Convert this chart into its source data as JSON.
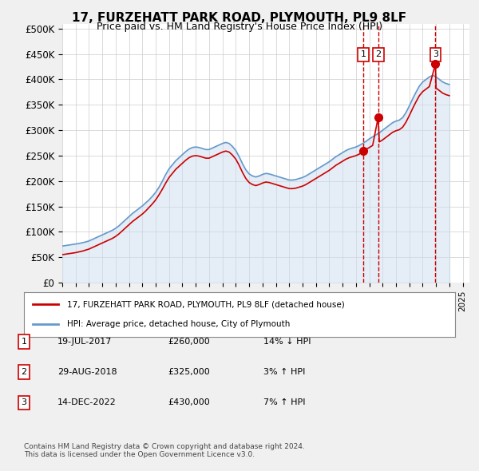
{
  "title": "17, FURZEHATT PARK ROAD, PLYMOUTH, PL9 8LF",
  "subtitle": "Price paid vs. HM Land Registry's House Price Index (HPI)",
  "ylabel_ticks": [
    "£0",
    "£50K",
    "£100K",
    "£150K",
    "£200K",
    "£250K",
    "£300K",
    "£350K",
    "£400K",
    "£450K",
    "£500K"
  ],
  "ytick_values": [
    0,
    50000,
    100000,
    150000,
    200000,
    250000,
    300000,
    350000,
    400000,
    450000,
    500000
  ],
  "ylim": [
    0,
    510000
  ],
  "xlim_start": 1995.0,
  "xlim_end": 2025.5,
  "hpi_color": "#6699cc",
  "price_color": "#cc0000",
  "dashed_color": "#cc0000",
  "shaded_color": "#ccddee",
  "background_color": "#f0f0f0",
  "plot_bg_color": "#ffffff",
  "sale_dates": [
    2017.54,
    2018.66,
    2022.95
  ],
  "sale_prices": [
    260000,
    325000,
    430000
  ],
  "sale_labels": [
    "1",
    "2",
    "3"
  ],
  "legend_entries": [
    "17, FURZEHATT PARK ROAD, PLYMOUTH, PL9 8LF (detached house)",
    "HPI: Average price, detached house, City of Plymouth"
  ],
  "table_data": [
    [
      "1",
      "19-JUL-2017",
      "£260,000",
      "14% ↓ HPI"
    ],
    [
      "2",
      "29-AUG-2018",
      "£325,000",
      "3% ↑ HPI"
    ],
    [
      "3",
      "14-DEC-2022",
      "£430,000",
      "7% ↑ HPI"
    ]
  ],
  "footer": "Contains HM Land Registry data © Crown copyright and database right 2024.\nThis data is licensed under the Open Government Licence v3.0.",
  "hpi_data_x": [
    1995.0,
    1995.25,
    1995.5,
    1995.75,
    1996.0,
    1996.25,
    1996.5,
    1996.75,
    1997.0,
    1997.25,
    1997.5,
    1997.75,
    1998.0,
    1998.25,
    1998.5,
    1998.75,
    1999.0,
    1999.25,
    1999.5,
    1999.75,
    2000.0,
    2000.25,
    2000.5,
    2000.75,
    2001.0,
    2001.25,
    2001.5,
    2001.75,
    2002.0,
    2002.25,
    2002.5,
    2002.75,
    2003.0,
    2003.25,
    2003.5,
    2003.75,
    2004.0,
    2004.25,
    2004.5,
    2004.75,
    2005.0,
    2005.25,
    2005.5,
    2005.75,
    2006.0,
    2006.25,
    2006.5,
    2006.75,
    2007.0,
    2007.25,
    2007.5,
    2007.75,
    2008.0,
    2008.25,
    2008.5,
    2008.75,
    2009.0,
    2009.25,
    2009.5,
    2009.75,
    2010.0,
    2010.25,
    2010.5,
    2010.75,
    2011.0,
    2011.25,
    2011.5,
    2011.75,
    2012.0,
    2012.25,
    2012.5,
    2012.75,
    2013.0,
    2013.25,
    2013.5,
    2013.75,
    2014.0,
    2014.25,
    2014.5,
    2014.75,
    2015.0,
    2015.25,
    2015.5,
    2015.75,
    2016.0,
    2016.25,
    2016.5,
    2016.75,
    2017.0,
    2017.25,
    2017.5,
    2017.75,
    2018.0,
    2018.25,
    2018.5,
    2018.75,
    2019.0,
    2019.25,
    2019.5,
    2019.75,
    2020.0,
    2020.25,
    2020.5,
    2020.75,
    2021.0,
    2021.25,
    2021.5,
    2021.75,
    2022.0,
    2022.25,
    2022.5,
    2022.75,
    2023.0,
    2023.25,
    2023.5,
    2023.75,
    2024.0
  ],
  "hpi_data_y": [
    72000,
    73000,
    74000,
    75000,
    76000,
    77000,
    78500,
    80000,
    82000,
    85000,
    88000,
    91000,
    94000,
    97000,
    100000,
    103000,
    107000,
    112000,
    118000,
    124000,
    130000,
    136000,
    141000,
    146000,
    151000,
    157000,
    163000,
    170000,
    178000,
    188000,
    200000,
    213000,
    224000,
    232000,
    240000,
    246000,
    252000,
    258000,
    263000,
    266000,
    267000,
    266000,
    264000,
    262000,
    262000,
    265000,
    268000,
    271000,
    274000,
    276000,
    274000,
    268000,
    260000,
    248000,
    234000,
    222000,
    214000,
    210000,
    208000,
    210000,
    213000,
    215000,
    214000,
    212000,
    210000,
    208000,
    206000,
    204000,
    202000,
    202000,
    203000,
    205000,
    207000,
    210000,
    214000,
    218000,
    222000,
    226000,
    230000,
    234000,
    238000,
    243000,
    248000,
    252000,
    256000,
    260000,
    263000,
    265000,
    267000,
    270000,
    274000,
    278000,
    283000,
    287000,
    291000,
    295000,
    300000,
    305000,
    310000,
    315000,
    318000,
    320000,
    325000,
    335000,
    348000,
    362000,
    375000,
    387000,
    395000,
    400000,
    405000,
    408000,
    405000,
    400000,
    395000,
    392000,
    390000
  ],
  "price_data_x": [
    1995.0,
    1995.25,
    1995.5,
    1995.75,
    1996.0,
    1996.25,
    1996.5,
    1996.75,
    1997.0,
    1997.25,
    1997.5,
    1997.75,
    1998.0,
    1998.25,
    1998.5,
    1998.75,
    1999.0,
    1999.25,
    1999.5,
    1999.75,
    2000.0,
    2000.25,
    2000.5,
    2000.75,
    2001.0,
    2001.25,
    2001.5,
    2001.75,
    2002.0,
    2002.25,
    2002.5,
    2002.75,
    2003.0,
    2003.25,
    2003.5,
    2003.75,
    2004.0,
    2004.25,
    2004.5,
    2004.75,
    2005.0,
    2005.25,
    2005.5,
    2005.75,
    2006.0,
    2006.25,
    2006.5,
    2006.75,
    2007.0,
    2007.25,
    2007.5,
    2007.75,
    2008.0,
    2008.25,
    2008.5,
    2008.75,
    2009.0,
    2009.25,
    2009.5,
    2009.75,
    2010.0,
    2010.25,
    2010.5,
    2010.75,
    2011.0,
    2011.25,
    2011.5,
    2011.75,
    2012.0,
    2012.25,
    2012.5,
    2012.75,
    2013.0,
    2013.25,
    2013.5,
    2013.75,
    2014.0,
    2014.25,
    2014.5,
    2014.75,
    2015.0,
    2015.25,
    2015.5,
    2015.75,
    2016.0,
    2016.25,
    2016.5,
    2016.75,
    2017.0,
    2017.25,
    2017.54,
    2017.75,
    2018.0,
    2018.25,
    2018.66,
    2018.75,
    2019.0,
    2019.25,
    2019.5,
    2019.75,
    2020.0,
    2020.25,
    2020.5,
    2020.75,
    2021.0,
    2021.25,
    2021.5,
    2021.75,
    2022.0,
    2022.25,
    2022.5,
    2022.95,
    2023.0,
    2023.25,
    2023.5,
    2023.75,
    2024.0
  ],
  "price_data_y": [
    55000,
    56000,
    57000,
    58000,
    59000,
    60500,
    62000,
    64000,
    66000,
    69000,
    72000,
    75000,
    78000,
    81000,
    84000,
    87000,
    91000,
    96000,
    102000,
    108000,
    114000,
    120000,
    125000,
    130000,
    135000,
    141000,
    148000,
    155000,
    163000,
    173000,
    184000,
    196000,
    207000,
    215000,
    223000,
    229000,
    235000,
    241000,
    246000,
    249000,
    250000,
    249000,
    247000,
    245000,
    245000,
    248000,
    251000,
    254000,
    257000,
    259000,
    257000,
    251000,
    243000,
    231000,
    217000,
    205000,
    197000,
    193000,
    191000,
    193000,
    196000,
    198000,
    197000,
    195000,
    193000,
    191000,
    189000,
    187000,
    185000,
    185000,
    186000,
    188000,
    190000,
    193000,
    197000,
    201000,
    205000,
    209000,
    213000,
    217000,
    221000,
    226000,
    231000,
    235000,
    239000,
    243000,
    246000,
    248000,
    250000,
    253000,
    260000,
    262000,
    266000,
    270000,
    325000,
    277000,
    281000,
    286000,
    291000,
    296000,
    299000,
    301000,
    306000,
    316000,
    329000,
    343000,
    356000,
    368000,
    376000,
    381000,
    386000,
    430000,
    383000,
    378000,
    373000,
    370000,
    368000
  ]
}
